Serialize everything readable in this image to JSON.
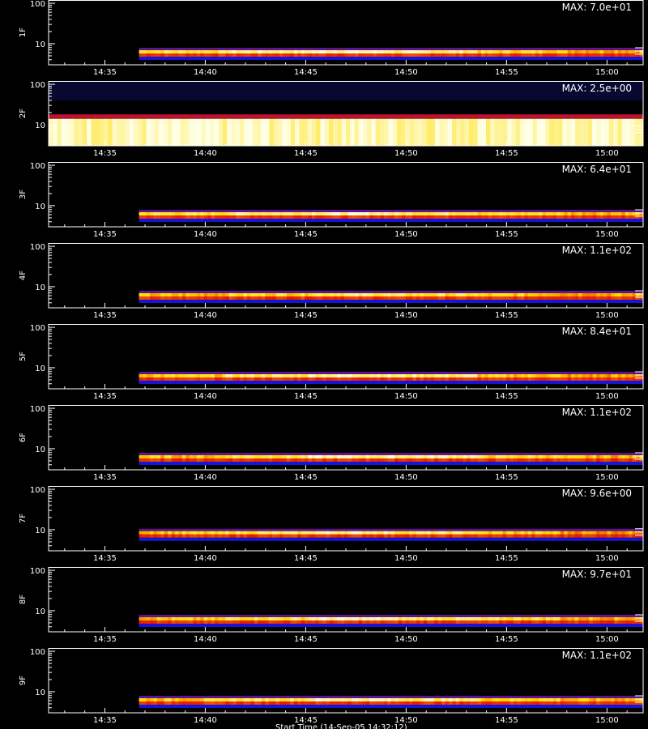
{
  "figure": {
    "x_axis_title": "Start Time (14-Sep-05 14:32:12)"
  },
  "chart_data": [
    {
      "type": "heatmap",
      "ylabel": "1F",
      "max_label": "MAX: 7.0e+01",
      "x_ticks": [
        "14:35",
        "14:40",
        "14:45",
        "14:50",
        "14:55",
        "15:00"
      ],
      "y_ticks": [
        "10",
        "100"
      ],
      "y_scale": "log",
      "grid": false,
      "data_start_time": "14:36.7",
      "band_center": 6,
      "band_intensity": [
        0.82,
        0.9,
        0.95,
        0.88,
        0.78,
        0.7
      ]
    },
    {
      "type": "heatmap",
      "ylabel": "2F",
      "max_label": "MAX: 2.5e+00",
      "x_ticks": [
        "14:35",
        "14:40",
        "14:45",
        "14:50",
        "14:55",
        "15:00"
      ],
      "y_ticks": [
        "10",
        "100"
      ],
      "y_scale": "log",
      "grid": false,
      "data_start_time": "14:32.2",
      "band_center": 7,
      "band_intensity": [
        0.97,
        0.98,
        0.97,
        0.96,
        0.97,
        0.96
      ]
    },
    {
      "type": "heatmap",
      "ylabel": "3F",
      "max_label": "MAX: 6.4e+01",
      "x_ticks": [
        "14:35",
        "14:40",
        "14:45",
        "14:50",
        "14:55",
        "15:00"
      ],
      "y_ticks": [
        "10",
        "100"
      ],
      "y_scale": "log",
      "grid": false,
      "data_start_time": "14:36.7",
      "band_center": 6,
      "band_intensity": [
        0.8,
        0.88,
        0.93,
        0.86,
        0.78,
        0.72
      ]
    },
    {
      "type": "heatmap",
      "ylabel": "4F",
      "max_label": "MAX: 1.1e+02",
      "x_ticks": [
        "14:35",
        "14:40",
        "14:45",
        "14:50",
        "14:55",
        "15:00"
      ],
      "y_ticks": [
        "10",
        "100"
      ],
      "y_scale": "log",
      "grid": false,
      "data_start_time": "14:36.7",
      "band_center": 6,
      "band_intensity": [
        0.7,
        0.78,
        0.85,
        0.8,
        0.74,
        0.68
      ]
    },
    {
      "type": "heatmap",
      "ylabel": "5F",
      "max_label": "MAX: 8.4e+01",
      "x_ticks": [
        "14:35",
        "14:40",
        "14:45",
        "14:50",
        "14:55",
        "15:00"
      ],
      "y_ticks": [
        "10",
        "100"
      ],
      "y_scale": "log",
      "grid": false,
      "data_start_time": "14:36.7",
      "band_center": 6,
      "band_intensity": [
        0.75,
        0.85,
        0.93,
        0.88,
        0.74,
        0.66
      ]
    },
    {
      "type": "heatmap",
      "ylabel": "6F",
      "max_label": "MAX: 1.1e+02",
      "x_ticks": [
        "14:35",
        "14:40",
        "14:45",
        "14:50",
        "14:55",
        "15:00"
      ],
      "y_ticks": [
        "10",
        "100"
      ],
      "y_scale": "log",
      "grid": false,
      "data_start_time": "14:36.7",
      "band_center": 6,
      "band_intensity": [
        0.72,
        0.82,
        0.9,
        0.9,
        0.78,
        0.7
      ]
    },
    {
      "type": "heatmap",
      "ylabel": "7F",
      "max_label": "MAX: 9.6e+00",
      "x_ticks": [
        "14:35",
        "14:40",
        "14:45",
        "14:50",
        "14:55",
        "15:00"
      ],
      "y_ticks": [
        "10",
        "100"
      ],
      "y_scale": "log",
      "grid": false,
      "data_start_time": "14:36.7",
      "band_center": 8,
      "band_intensity": [
        0.74,
        0.82,
        0.9,
        0.84,
        0.74,
        0.66
      ]
    },
    {
      "type": "heatmap",
      "ylabel": "8F",
      "max_label": "MAX: 9.7e+01",
      "x_ticks": [
        "14:35",
        "14:40",
        "14:45",
        "14:50",
        "14:55",
        "15:00"
      ],
      "y_ticks": [
        "10",
        "100"
      ],
      "y_scale": "log",
      "grid": false,
      "data_start_time": "14:36.7",
      "band_center": 6,
      "band_intensity": [
        0.72,
        0.82,
        0.92,
        0.86,
        0.8,
        0.7
      ]
    },
    {
      "type": "heatmap",
      "ylabel": "9F",
      "max_label": "MAX: 1.1e+02",
      "x_ticks": [
        "14:35",
        "14:40",
        "14:45",
        "14:50",
        "14:55",
        "15:00"
      ],
      "y_ticks": [
        "10",
        "100"
      ],
      "y_scale": "log",
      "grid": false,
      "data_start_time": "14:36.7",
      "band_center": 6,
      "band_intensity": [
        0.74,
        0.84,
        0.93,
        0.88,
        0.78,
        0.7
      ]
    }
  ]
}
